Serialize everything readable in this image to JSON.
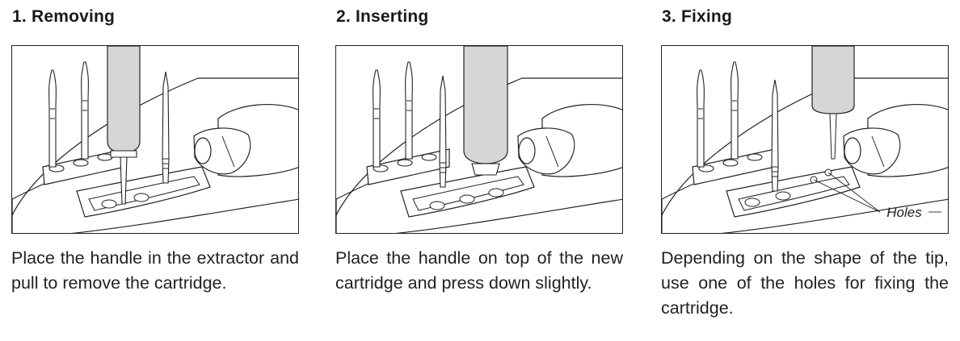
{
  "steps": [
    {
      "title": "1. Removing",
      "description": "Place the handle in the extractor and pull to remove the cartridge."
    },
    {
      "title": "2. Inserting",
      "description": "Place the handle on top of the new cartridge and press down slightly."
    },
    {
      "title": "3. Fixing",
      "description": "Depending on the shape of the tip, use one of the holes for fixing the cartridge.",
      "callout": "Holes"
    }
  ]
}
